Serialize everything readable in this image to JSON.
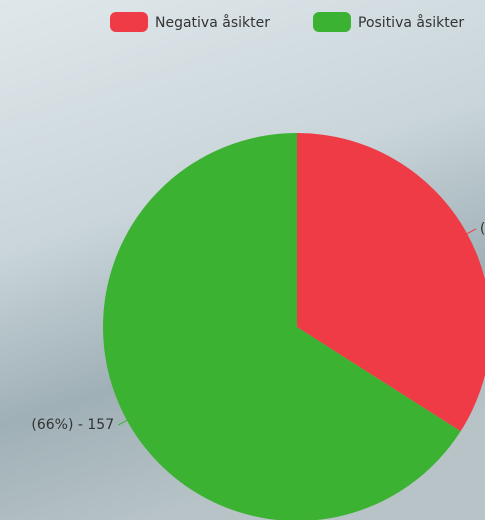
{
  "chart_data": {
    "type": "pie",
    "categories": [
      "Negativa åsikter",
      "Positiva åsikter"
    ],
    "values": [
      81,
      157
    ],
    "value_labels": [
      "(",
      "(66%) - 157"
    ],
    "colors": [
      "#ef3b45",
      "#3cb232"
    ],
    "legend": "top"
  }
}
